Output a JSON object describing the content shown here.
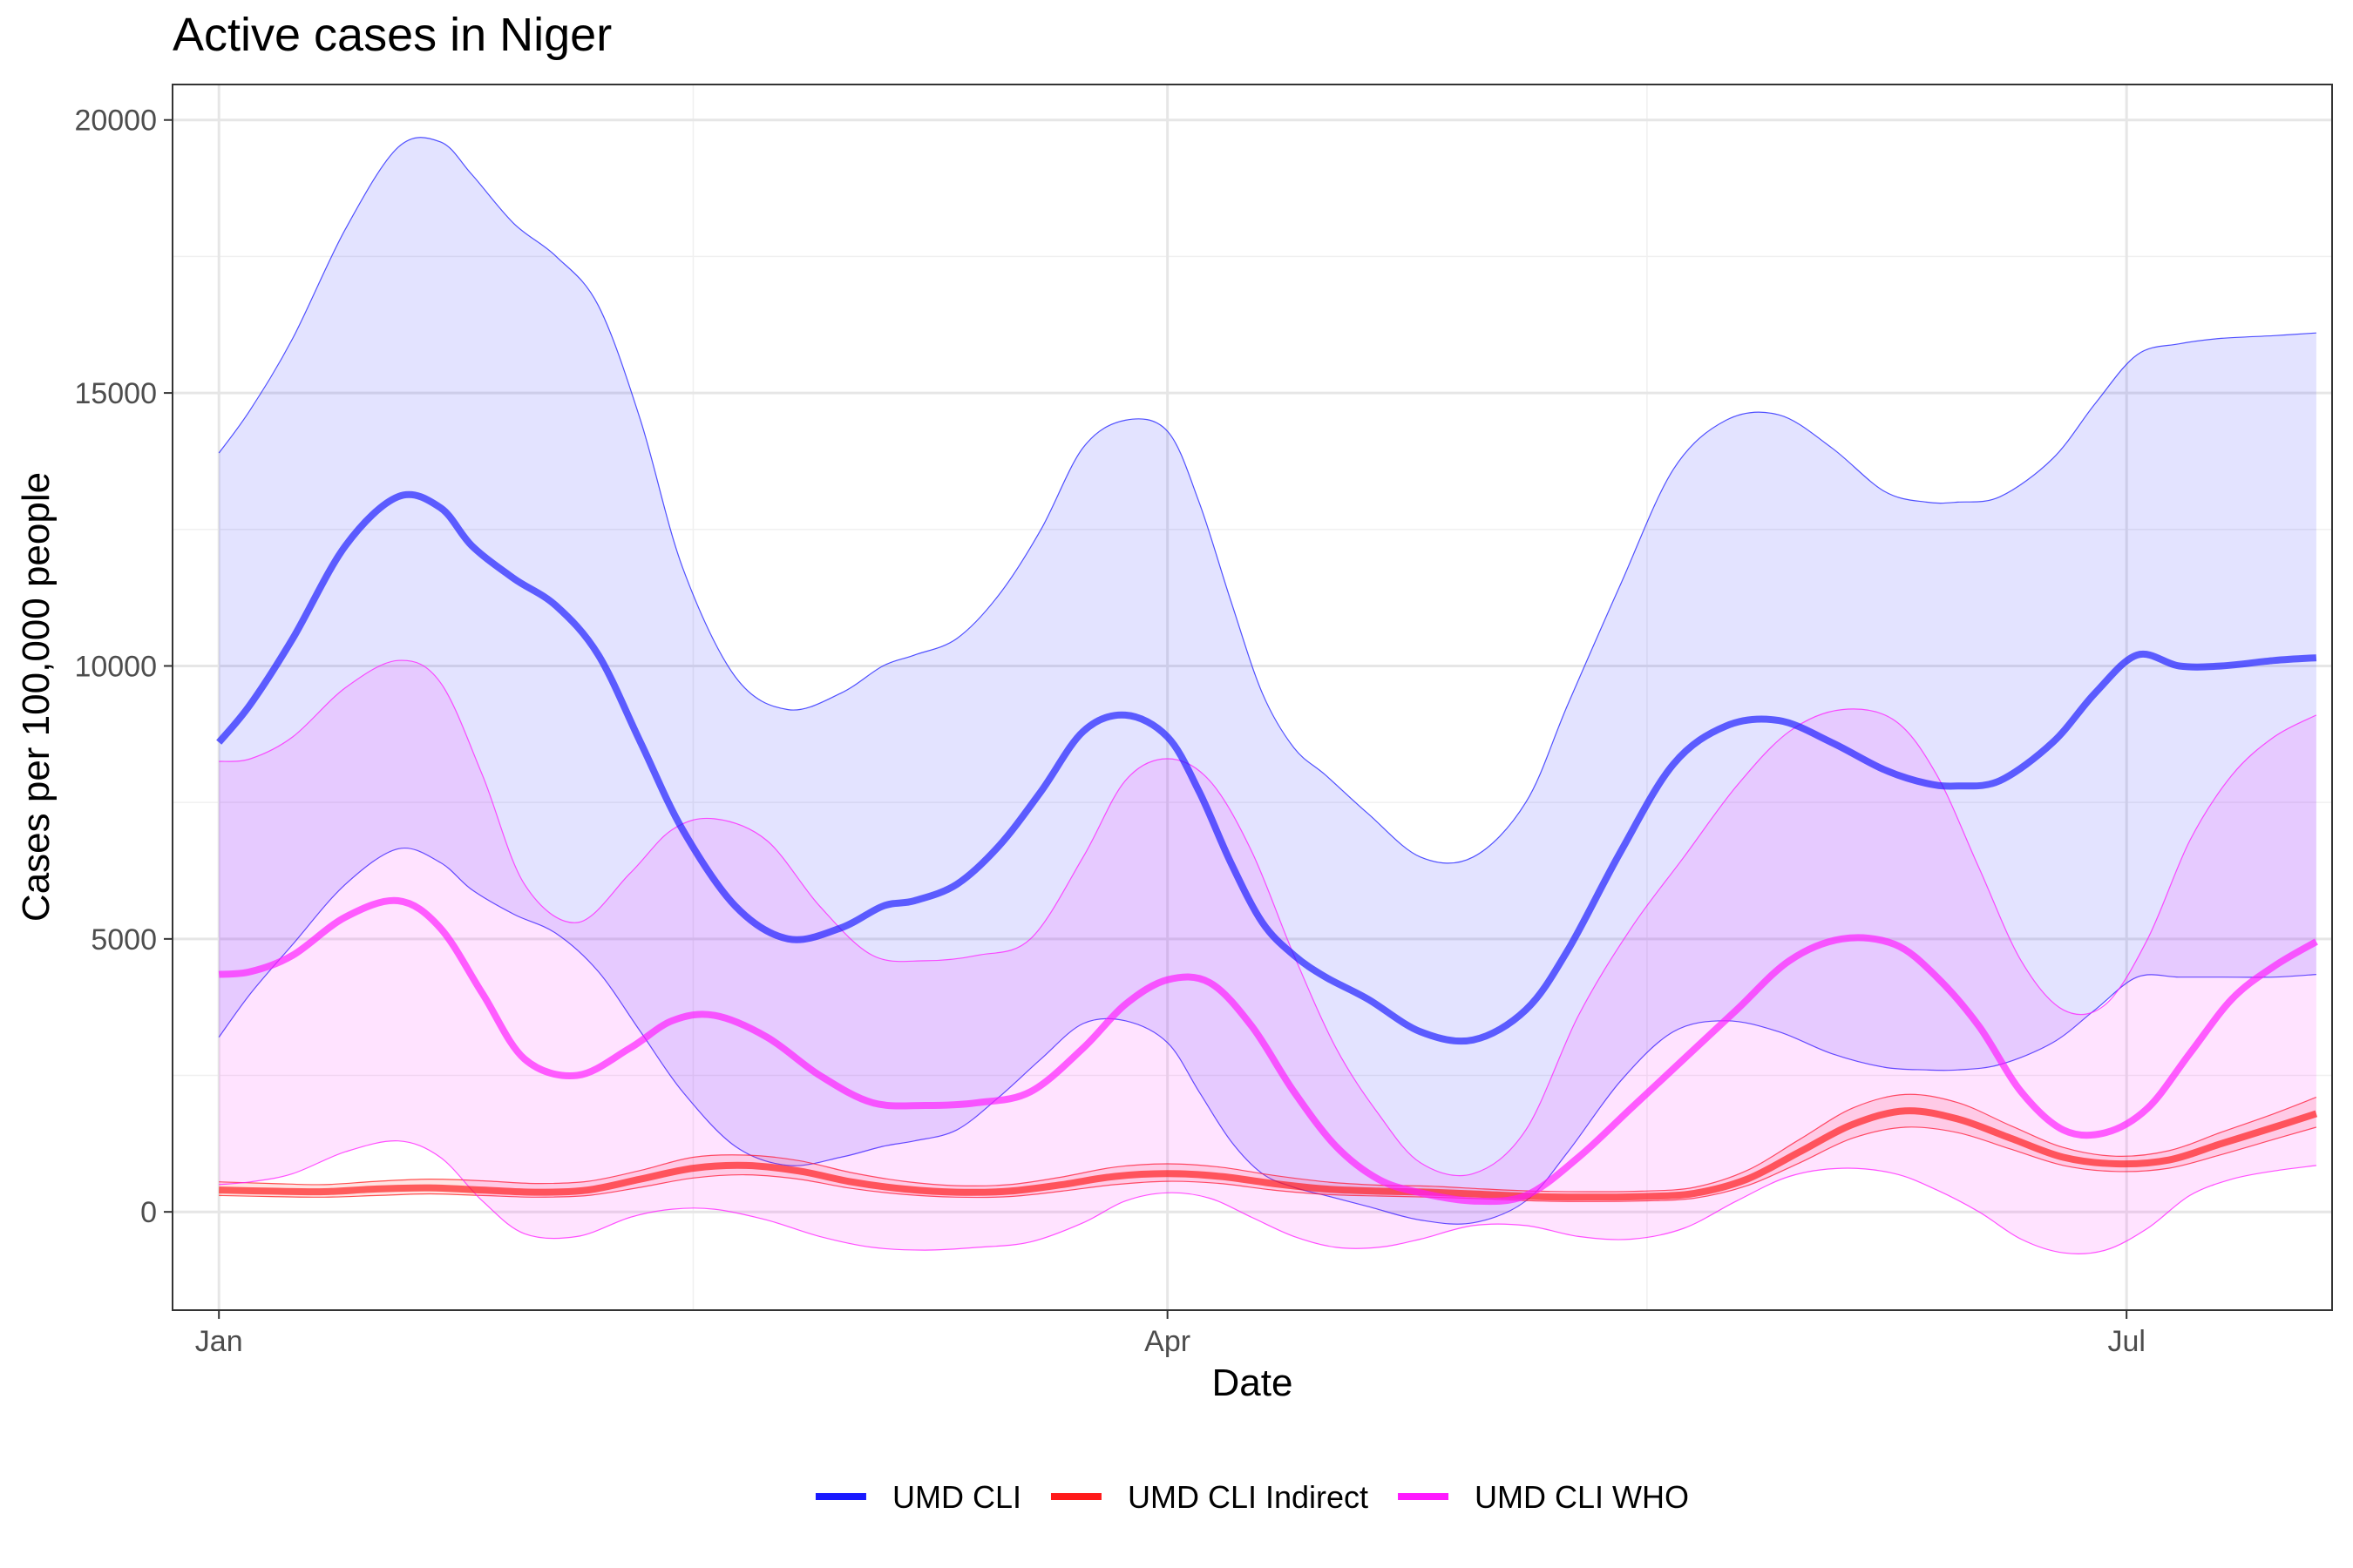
{
  "chart_data": {
    "type": "line",
    "title": "Active cases in Niger",
    "xlabel": "Date",
    "ylabel": "Cases per 100,000 people",
    "x_unit": "day of year 2021",
    "x_range": [
      -3.4,
      201.5
    ],
    "ylim": [
      -1800,
      20650
    ],
    "y_ticks": [
      0,
      5000,
      10000,
      15000,
      20000
    ],
    "y_minor_ticks": [
      2500,
      7500,
      12500,
      17500
    ],
    "x_ticks": [
      {
        "day": 1,
        "label": "Jan"
      },
      {
        "day": 91,
        "label": "Apr"
      },
      {
        "day": 182,
        "label": "Jul"
      }
    ],
    "x_minor_ticks": [
      46,
      136.5
    ],
    "legend": {
      "position": "bottom"
    },
    "series": [
      {
        "name": "UMD CLI",
        "color": "#1a1aff",
        "fill": "#e3e3fc",
        "x": [
          1,
          4,
          8,
          13,
          18,
          22,
          25,
          29,
          33,
          37,
          41,
          45,
          50,
          55,
          60,
          64,
          67,
          71,
          75,
          79,
          83,
          87,
          91,
          94,
          97,
          100,
          103,
          106,
          110,
          115,
          120,
          125,
          129,
          134,
          139,
          144,
          149,
          154,
          159,
          163,
          166,
          170,
          175,
          179,
          183,
          187,
          191,
          196,
          200
        ],
        "values": [
          8600,
          9300,
          10500,
          12200,
          13100,
          12900,
          12200,
          11600,
          11100,
          10200,
          8600,
          7000,
          5600,
          5000,
          5200,
          5600,
          5700,
          6000,
          6700,
          7700,
          8800,
          9100,
          8700,
          7700,
          6400,
          5300,
          4700,
          4300,
          3900,
          3300,
          3150,
          3700,
          4800,
          6600,
          8200,
          8900,
          9000,
          8600,
          8100,
          7850,
          7800,
          7900,
          8600,
          9500,
          10200,
          10000,
          10000,
          10100,
          10150
        ],
        "lower": [
          3200,
          4000,
          4900,
          6000,
          6650,
          6400,
          5900,
          5450,
          5100,
          4400,
          3300,
          2200,
          1200,
          850,
          1000,
          1200,
          1300,
          1500,
          2100,
          2800,
          3450,
          3500,
          3100,
          2200,
          1300,
          700,
          450,
          300,
          100,
          -150,
          -200,
          200,
          1100,
          2400,
          3300,
          3500,
          3300,
          2900,
          2650,
          2600,
          2600,
          2700,
          3100,
          3700,
          4300,
          4300,
          4300,
          4300,
          4350
        ],
        "upper": [
          13900,
          14700,
          16000,
          18000,
          19500,
          19600,
          19000,
          18100,
          17500,
          16600,
          14500,
          11800,
          9800,
          9200,
          9500,
          10000,
          10200,
          10500,
          11300,
          12500,
          14000,
          14500,
          14300,
          13000,
          11200,
          9500,
          8500,
          8000,
          7300,
          6500,
          6500,
          7500,
          9300,
          11500,
          13600,
          14500,
          14600,
          14000,
          13200,
          13000,
          13000,
          13100,
          13800,
          14800,
          15700,
          15900,
          16000,
          16050,
          16100
        ]
      },
      {
        "name": "UMD CLI Indirect",
        "color": "#ff1a1a",
        "fill": "#f8c4cc",
        "x": [
          1,
          6,
          11,
          16,
          21,
          26,
          31,
          36,
          41,
          46,
          51,
          56,
          61,
          66,
          71,
          76,
          81,
          86,
          91,
          96,
          101,
          106,
          111,
          116,
          121,
          126,
          131,
          136,
          141,
          146,
          151,
          156,
          161,
          166,
          171,
          176,
          181,
          186,
          191,
          196,
          200
        ],
        "values": [
          400,
          380,
          370,
          420,
          440,
          400,
          360,
          400,
          600,
          800,
          850,
          750,
          550,
          420,
          360,
          380,
          500,
          650,
          700,
          650,
          520,
          420,
          380,
          360,
          320,
          280,
          270,
          280,
          340,
          600,
          1100,
          1600,
          1850,
          1700,
          1350,
          1000,
          880,
          950,
          1250,
          1550,
          1800
        ],
        "lower": [
          300,
          280,
          270,
          300,
          330,
          300,
          270,
          300,
          450,
          620,
          680,
          600,
          430,
          320,
          270,
          280,
          380,
          500,
          560,
          520,
          400,
          320,
          290,
          270,
          240,
          200,
          190,
          200,
          250,
          480,
          900,
          1350,
          1550,
          1450,
          1150,
          850,
          740,
          800,
          1050,
          1330,
          1550
        ],
        "upper": [
          550,
          520,
          500,
          560,
          600,
          570,
          520,
          560,
          760,
          1000,
          1040,
          940,
          720,
          560,
          480,
          500,
          640,
          820,
          880,
          820,
          670,
          550,
          490,
          470,
          420,
          380,
          370,
          380,
          450,
          760,
          1330,
          1900,
          2150,
          2000,
          1580,
          1180,
          1020,
          1120,
          1460,
          1800,
          2100
        ]
      },
      {
        "name": "UMD CLI WHO",
        "color": "#ff1aff",
        "fill": "#fde3fd",
        "x": [
          1,
          4,
          8,
          13,
          18,
          22,
          26,
          30,
          35,
          40,
          44,
          48,
          53,
          58,
          63,
          68,
          73,
          78,
          83,
          87,
          91,
          95,
          99,
          103,
          107,
          111,
          115,
          120,
          125,
          130,
          135,
          140,
          145,
          150,
          155,
          160,
          164,
          168,
          172,
          176,
          180,
          184,
          188,
          192,
          196,
          200
        ],
        "values": [
          4350,
          4400,
          4700,
          5400,
          5700,
          5200,
          4000,
          2800,
          2500,
          3000,
          3500,
          3600,
          3200,
          2500,
          2000,
          1950,
          2000,
          2200,
          3000,
          3800,
          4250,
          4200,
          3400,
          2200,
          1200,
          600,
          350,
          200,
          300,
          1000,
          1900,
          2800,
          3700,
          4600,
          5000,
          4900,
          4300,
          3400,
          2200,
          1500,
          1450,
          1900,
          2900,
          3900,
          4500,
          4950
        ],
        "lower": [
          500,
          550,
          700,
          1100,
          1300,
          1000,
          200,
          -400,
          -450,
          -100,
          50,
          50,
          -150,
          -450,
          -650,
          -700,
          -650,
          -550,
          -200,
          200,
          350,
          250,
          -100,
          -450,
          -650,
          -650,
          -500,
          -250,
          -250,
          -450,
          -500,
          -300,
          200,
          650,
          800,
          700,
          400,
          0,
          -500,
          -750,
          -700,
          -300,
          300,
          600,
          750,
          850
        ],
        "upper": [
          8250,
          8300,
          8700,
          9600,
          10100,
          9700,
          8000,
          6000,
          5300,
          6200,
          7000,
          7200,
          6800,
          5600,
          4700,
          4600,
          4700,
          5000,
          6500,
          7900,
          8300,
          7900,
          6600,
          4700,
          3000,
          1800,
          900,
          700,
          1500,
          3600,
          5200,
          6500,
          7800,
          8800,
          9200,
          9000,
          8000,
          6300,
          4600,
          3700,
          3800,
          5000,
          6800,
          8000,
          8700,
          9100
        ]
      }
    ]
  }
}
